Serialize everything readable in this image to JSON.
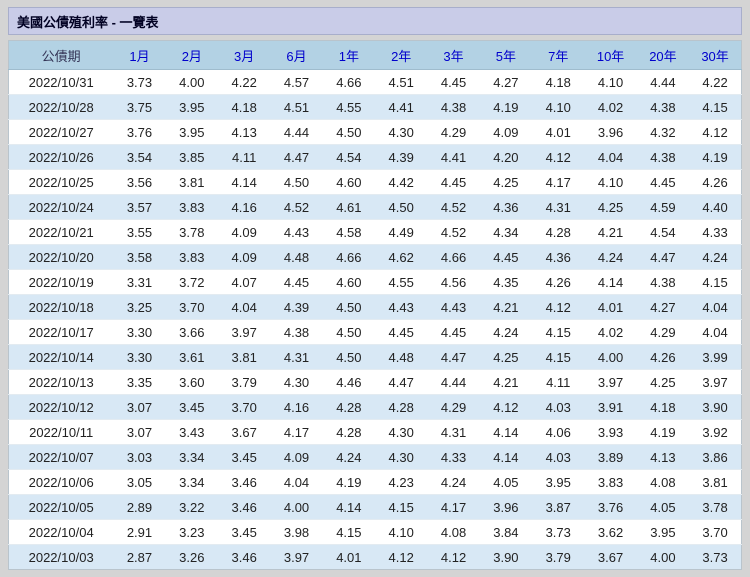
{
  "title": "美國公債殖利率 - 一覽表",
  "colors": {
    "page_bg": "#d4d4d4",
    "title_bg": "#c9cce8",
    "title_text": "#000022",
    "header_bg": "#b3d2e4",
    "header_text": "#0000cc",
    "header_first_text": "#333355",
    "row_bg": "#ffffff",
    "row_alt_bg": "#d8e8f5",
    "cell_text": "#222222",
    "border": "#b9c4cc"
  },
  "table": {
    "columns": [
      "公債期",
      "1月",
      "2月",
      "3月",
      "6月",
      "1年",
      "2年",
      "3年",
      "5年",
      "7年",
      "10年",
      "20年",
      "30年"
    ],
    "rows": [
      {
        "date": "2022/10/31",
        "values": [
          "3.73",
          "4.00",
          "4.22",
          "4.57",
          "4.66",
          "4.51",
          "4.45",
          "4.27",
          "4.18",
          "4.10",
          "4.44",
          "4.22"
        ]
      },
      {
        "date": "2022/10/28",
        "values": [
          "3.75",
          "3.95",
          "4.18",
          "4.51",
          "4.55",
          "4.41",
          "4.38",
          "4.19",
          "4.10",
          "4.02",
          "4.38",
          "4.15"
        ]
      },
      {
        "date": "2022/10/27",
        "values": [
          "3.76",
          "3.95",
          "4.13",
          "4.44",
          "4.50",
          "4.30",
          "4.29",
          "4.09",
          "4.01",
          "3.96",
          "4.32",
          "4.12"
        ]
      },
      {
        "date": "2022/10/26",
        "values": [
          "3.54",
          "3.85",
          "4.11",
          "4.47",
          "4.54",
          "4.39",
          "4.41",
          "4.20",
          "4.12",
          "4.04",
          "4.38",
          "4.19"
        ]
      },
      {
        "date": "2022/10/25",
        "values": [
          "3.56",
          "3.81",
          "4.14",
          "4.50",
          "4.60",
          "4.42",
          "4.45",
          "4.25",
          "4.17",
          "4.10",
          "4.45",
          "4.26"
        ]
      },
      {
        "date": "2022/10/24",
        "values": [
          "3.57",
          "3.83",
          "4.16",
          "4.52",
          "4.61",
          "4.50",
          "4.52",
          "4.36",
          "4.31",
          "4.25",
          "4.59",
          "4.40"
        ]
      },
      {
        "date": "2022/10/21",
        "values": [
          "3.55",
          "3.78",
          "4.09",
          "4.43",
          "4.58",
          "4.49",
          "4.52",
          "4.34",
          "4.28",
          "4.21",
          "4.54",
          "4.33"
        ]
      },
      {
        "date": "2022/10/20",
        "values": [
          "3.58",
          "3.83",
          "4.09",
          "4.48",
          "4.66",
          "4.62",
          "4.66",
          "4.45",
          "4.36",
          "4.24",
          "4.47",
          "4.24"
        ]
      },
      {
        "date": "2022/10/19",
        "values": [
          "3.31",
          "3.72",
          "4.07",
          "4.45",
          "4.60",
          "4.55",
          "4.56",
          "4.35",
          "4.26",
          "4.14",
          "4.38",
          "4.15"
        ]
      },
      {
        "date": "2022/10/18",
        "values": [
          "3.25",
          "3.70",
          "4.04",
          "4.39",
          "4.50",
          "4.43",
          "4.43",
          "4.21",
          "4.12",
          "4.01",
          "4.27",
          "4.04"
        ]
      },
      {
        "date": "2022/10/17",
        "values": [
          "3.30",
          "3.66",
          "3.97",
          "4.38",
          "4.50",
          "4.45",
          "4.45",
          "4.24",
          "4.15",
          "4.02",
          "4.29",
          "4.04"
        ]
      },
      {
        "date": "2022/10/14",
        "values": [
          "3.30",
          "3.61",
          "3.81",
          "4.31",
          "4.50",
          "4.48",
          "4.47",
          "4.25",
          "4.15",
          "4.00",
          "4.26",
          "3.99"
        ]
      },
      {
        "date": "2022/10/13",
        "values": [
          "3.35",
          "3.60",
          "3.79",
          "4.30",
          "4.46",
          "4.47",
          "4.44",
          "4.21",
          "4.11",
          "3.97",
          "4.25",
          "3.97"
        ]
      },
      {
        "date": "2022/10/12",
        "values": [
          "3.07",
          "3.45",
          "3.70",
          "4.16",
          "4.28",
          "4.28",
          "4.29",
          "4.12",
          "4.03",
          "3.91",
          "4.18",
          "3.90"
        ]
      },
      {
        "date": "2022/10/11",
        "values": [
          "3.07",
          "3.43",
          "3.67",
          "4.17",
          "4.28",
          "4.30",
          "4.31",
          "4.14",
          "4.06",
          "3.93",
          "4.19",
          "3.92"
        ]
      },
      {
        "date": "2022/10/07",
        "values": [
          "3.03",
          "3.34",
          "3.45",
          "4.09",
          "4.24",
          "4.30",
          "4.33",
          "4.14",
          "4.03",
          "3.89",
          "4.13",
          "3.86"
        ]
      },
      {
        "date": "2022/10/06",
        "values": [
          "3.05",
          "3.34",
          "3.46",
          "4.04",
          "4.19",
          "4.23",
          "4.24",
          "4.05",
          "3.95",
          "3.83",
          "4.08",
          "3.81"
        ]
      },
      {
        "date": "2022/10/05",
        "values": [
          "2.89",
          "3.22",
          "3.46",
          "4.00",
          "4.14",
          "4.15",
          "4.17",
          "3.96",
          "3.87",
          "3.76",
          "4.05",
          "3.78"
        ]
      },
      {
        "date": "2022/10/04",
        "values": [
          "2.91",
          "3.23",
          "3.45",
          "3.98",
          "4.15",
          "4.10",
          "4.08",
          "3.84",
          "3.73",
          "3.62",
          "3.95",
          "3.70"
        ]
      },
      {
        "date": "2022/10/03",
        "values": [
          "2.87",
          "3.26",
          "3.46",
          "3.97",
          "4.01",
          "4.12",
          "4.12",
          "3.90",
          "3.79",
          "3.67",
          "4.00",
          "3.73"
        ]
      }
    ]
  }
}
